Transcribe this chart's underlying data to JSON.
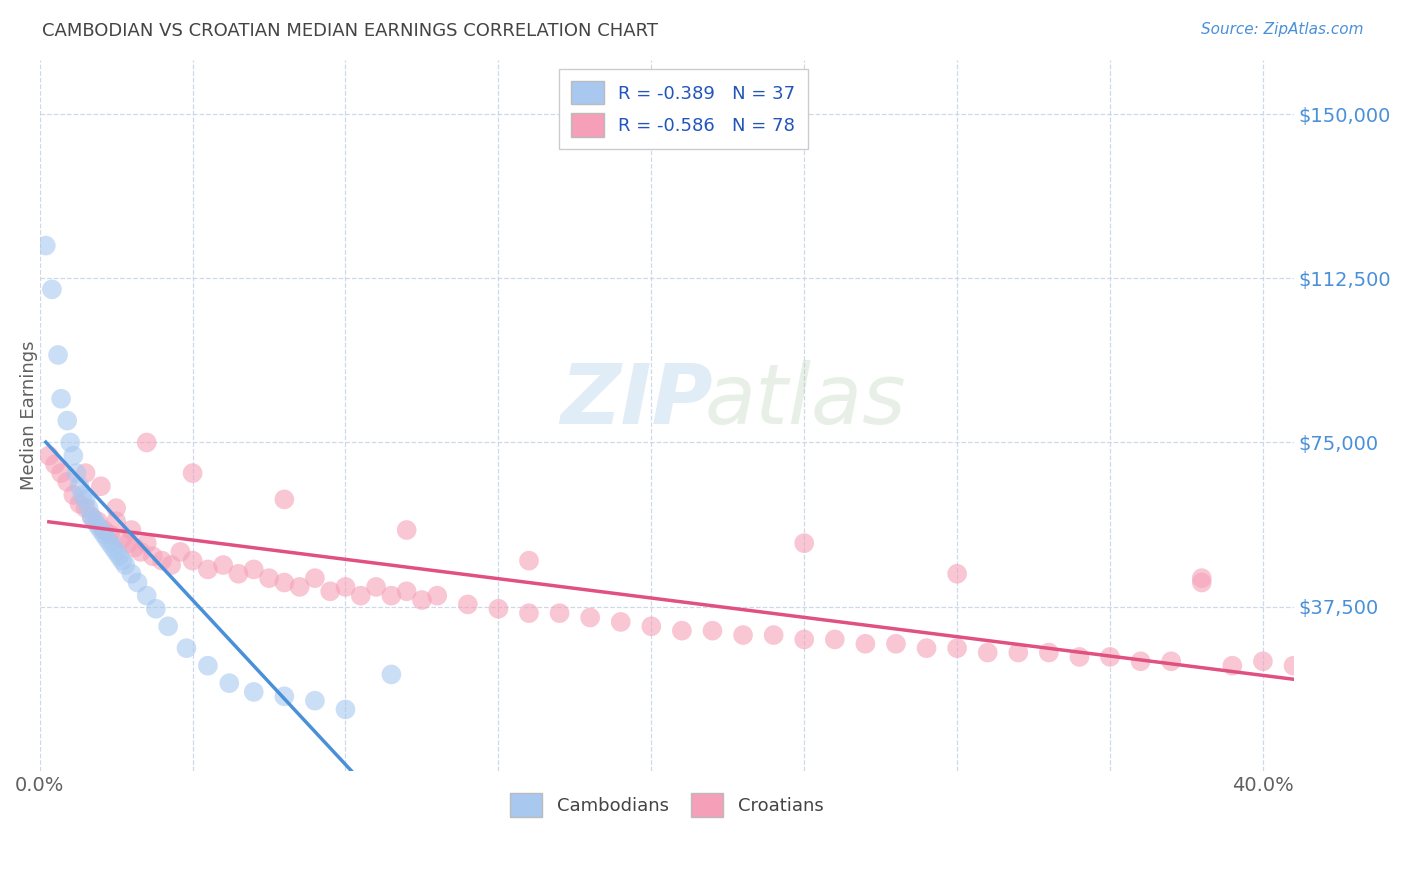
{
  "title": "CAMBODIAN VS CROATIAN MEDIAN EARNINGS CORRELATION CHART",
  "source": "Source: ZipAtlas.com",
  "ylabel": "Median Earnings",
  "ytick_labels": [
    "$37,500",
    "$75,000",
    "$112,500",
    "$150,000"
  ],
  "ytick_values": [
    37500,
    75000,
    112500,
    150000
  ],
  "ylim": [
    0,
    162500
  ],
  "xlim": [
    0.0,
    0.41
  ],
  "legend_r_cambodian": "R = -0.389",
  "legend_n_cambodian": "N = 37",
  "legend_r_croatian": "R = -0.586",
  "legend_n_croatian": "N = 78",
  "color_cambodian": "#a8c8f0",
  "color_croatian": "#f5a0b8",
  "line_color_cambodian": "#4a90d9",
  "line_color_croatian": "#e05080",
  "line_color_dashed": "#b8d0e8",
  "watermark_zip": "ZIP",
  "watermark_atlas": "atlas",
  "title_color": "#444444",
  "source_color": "#4a90d9",
  "axis_label_color": "#606060",
  "ytick_color": "#4a90d9",
  "xtick_color": "#606060",
  "background_color": "#ffffff",
  "grid_color": "#c8d4e8",
  "cambodian_x": [
    0.002,
    0.004,
    0.006,
    0.007,
    0.009,
    0.01,
    0.011,
    0.012,
    0.013,
    0.014,
    0.015,
    0.016,
    0.017,
    0.018,
    0.019,
    0.02,
    0.021,
    0.022,
    0.023,
    0.024,
    0.025,
    0.026,
    0.027,
    0.028,
    0.03,
    0.032,
    0.035,
    0.038,
    0.042,
    0.048,
    0.055,
    0.062,
    0.07,
    0.08,
    0.09,
    0.1,
    0.115
  ],
  "cambodian_y": [
    120000,
    110000,
    95000,
    85000,
    80000,
    75000,
    72000,
    68000,
    65000,
    63000,
    62000,
    60000,
    58000,
    57000,
    56000,
    55000,
    54000,
    53000,
    52000,
    51000,
    50000,
    49000,
    48000,
    47000,
    45000,
    43000,
    40000,
    37000,
    33000,
    28000,
    24000,
    20000,
    18000,
    17000,
    16000,
    14000,
    22000
  ],
  "croatian_x": [
    0.003,
    0.005,
    0.007,
    0.009,
    0.011,
    0.013,
    0.015,
    0.017,
    0.019,
    0.021,
    0.023,
    0.025,
    0.027,
    0.029,
    0.031,
    0.033,
    0.035,
    0.037,
    0.04,
    0.043,
    0.046,
    0.05,
    0.055,
    0.06,
    0.065,
    0.07,
    0.075,
    0.08,
    0.085,
    0.09,
    0.095,
    0.1,
    0.105,
    0.11,
    0.115,
    0.12,
    0.125,
    0.13,
    0.14,
    0.15,
    0.16,
    0.17,
    0.18,
    0.19,
    0.2,
    0.21,
    0.22,
    0.23,
    0.24,
    0.25,
    0.26,
    0.27,
    0.28,
    0.29,
    0.3,
    0.31,
    0.32,
    0.33,
    0.34,
    0.35,
    0.36,
    0.37,
    0.38,
    0.39,
    0.4,
    0.41,
    0.035,
    0.05,
    0.08,
    0.12,
    0.16,
    0.25,
    0.3,
    0.38,
    0.02,
    0.015,
    0.025,
    0.03
  ],
  "croatian_y": [
    72000,
    70000,
    68000,
    66000,
    63000,
    61000,
    60000,
    58000,
    57000,
    55000,
    54000,
    57000,
    53000,
    52000,
    51000,
    50000,
    52000,
    49000,
    48000,
    47000,
    50000,
    48000,
    46000,
    47000,
    45000,
    46000,
    44000,
    43000,
    42000,
    44000,
    41000,
    42000,
    40000,
    42000,
    40000,
    41000,
    39000,
    40000,
    38000,
    37000,
    36000,
    36000,
    35000,
    34000,
    33000,
    32000,
    32000,
    31000,
    31000,
    30000,
    30000,
    29000,
    29000,
    28000,
    28000,
    27000,
    27000,
    27000,
    26000,
    26000,
    25000,
    25000,
    43000,
    24000,
    25000,
    24000,
    75000,
    68000,
    62000,
    55000,
    48000,
    52000,
    45000,
    44000,
    65000,
    68000,
    60000,
    55000
  ]
}
